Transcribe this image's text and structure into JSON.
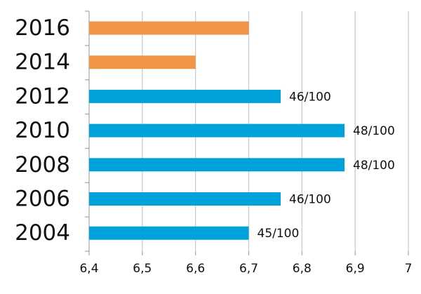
{
  "chart_data": {
    "type": "bar",
    "orientation": "horizontal",
    "title": "",
    "xlabel": "",
    "ylabel": "",
    "categories": [
      "2016",
      "2014",
      "2012",
      "2010",
      "2008",
      "2006",
      "2004"
    ],
    "values": [
      6.7,
      6.6,
      6.76,
      6.88,
      6.88,
      6.76,
      6.7
    ],
    "data_labels": [
      "",
      "",
      "46/100",
      "48/100",
      "48/100",
      "46/100",
      "45/100"
    ],
    "bar_colors": [
      "#F39346",
      "#F39346",
      "#00A2DC",
      "#00A2DC",
      "#00A2DC",
      "#00A2DC",
      "#00A2DC"
    ],
    "xlim": [
      6.4,
      7.0
    ],
    "xticks": [
      "6,4",
      "6,5",
      "6,6",
      "6,7",
      "6,8",
      "6,9",
      "7"
    ],
    "grid": true,
    "legend": "none"
  }
}
